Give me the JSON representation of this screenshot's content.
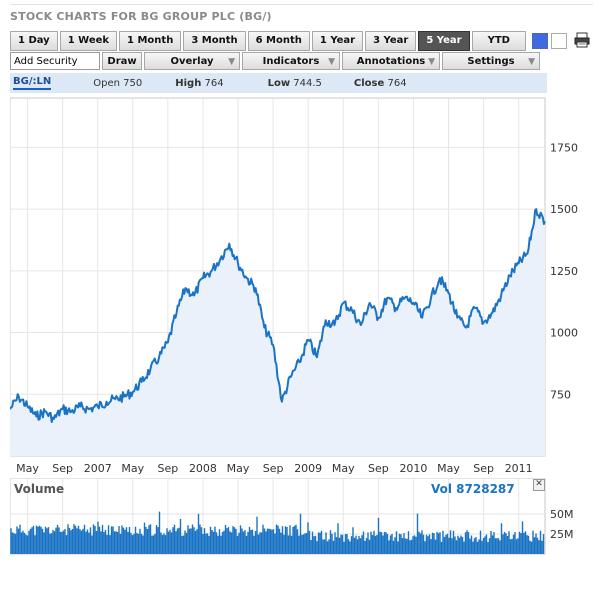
{
  "header": {
    "title": "STOCK CHARTS FOR BG GROUP PLC (BG/)"
  },
  "toolbar": {
    "ranges": [
      "1 Day",
      "1 Week",
      "1 Month",
      "3 Month",
      "6 Month",
      "1 Year",
      "3 Year",
      "5 Year",
      "YTD"
    ],
    "active_range": "5 Year"
  },
  "controls": {
    "add_security_value": "Add Security",
    "draw_label": "Draw",
    "overlay_label": "Overlay",
    "indicators_label": "Indicators",
    "annotations_label": "Annotations",
    "settings_label": "Settings"
  },
  "quote": {
    "symbol": "BG/:LN",
    "open_label": "Open",
    "open": "750",
    "high_label": "High",
    "high": "764",
    "low_label": "Low",
    "low": "744.5",
    "close_label": "Close",
    "close": "764"
  },
  "colors": {
    "line": "#1a73c4",
    "fill": "#eaf1fa",
    "grid": "#e6e6e6"
  },
  "chart_data": {
    "type": "area",
    "x_tick_labels": [
      "May",
      "Sep",
      "2007",
      "May",
      "Sep",
      "2008",
      "May",
      "Sep",
      "2009",
      "May",
      "Sep",
      "2010",
      "May",
      "Sep",
      "2011"
    ],
    "x_tick_dates": [
      "2006-05",
      "2006-09",
      "2007-01",
      "2007-05",
      "2007-09",
      "2008-01",
      "2008-05",
      "2008-09",
      "2009-01",
      "2009-05",
      "2009-09",
      "2010-01",
      "2010-05",
      "2010-09",
      "2011-01"
    ],
    "y_ticks": [
      750,
      1000,
      1250,
      1500,
      1750
    ],
    "ylim": [
      500,
      1950
    ],
    "xlim": [
      "2006-03",
      "2011-04"
    ],
    "series": [
      {
        "x": [
          "2006-03",
          "2006-04",
          "2006-05",
          "2006-06",
          "2006-07",
          "2006-08",
          "2006-09",
          "2006-10",
          "2006-11",
          "2006-12",
          "2007-01",
          "2007-02",
          "2007-03",
          "2007-04",
          "2007-05",
          "2007-06",
          "2007-07",
          "2007-08",
          "2007-09",
          "2007-10",
          "2007-11",
          "2007-12",
          "2008-01",
          "2008-02",
          "2008-03",
          "2008-04",
          "2008-05",
          "2008-06",
          "2008-07",
          "2008-08",
          "2008-09",
          "2008-10",
          "2008-11",
          "2008-12",
          "2009-01",
          "2009-02",
          "2009-03",
          "2009-04",
          "2009-05",
          "2009-06",
          "2009-07",
          "2009-08",
          "2009-09",
          "2009-10",
          "2009-11",
          "2009-12",
          "2010-01",
          "2010-02",
          "2010-03",
          "2010-04",
          "2010-05",
          "2010-06",
          "2010-07",
          "2010-08",
          "2010-09",
          "2010-10",
          "2010-11",
          "2010-12",
          "2011-01",
          "2011-02",
          "2011-03",
          "2011-04"
        ],
        "y": [
          690,
          740,
          700,
          660,
          680,
          650,
          690,
          680,
          700,
          690,
          700,
          720,
          730,
          740,
          760,
          800,
          850,
          900,
          960,
          1080,
          1180,
          1150,
          1220,
          1250,
          1300,
          1360,
          1280,
          1220,
          1180,
          1020,
          950,
          720,
          820,
          880,
          970,
          900,
          1050,
          1030,
          1120,
          1090,
          1030,
          1120,
          1060,
          1140,
          1100,
          1140,
          1120,
          1060,
          1140,
          1220,
          1160,
          1060,
          1020,
          1100,
          1040,
          1080,
          1150,
          1230,
          1280,
          1320,
          1500,
          1450
        ]
      }
    ],
    "volume": {
      "label": "Volume",
      "value_label": "Vol 8728287",
      "y_ticks_labels": [
        "50M",
        "25M"
      ],
      "y_ticks": [
        50,
        25
      ],
      "ylim": [
        0,
        70
      ]
    }
  }
}
